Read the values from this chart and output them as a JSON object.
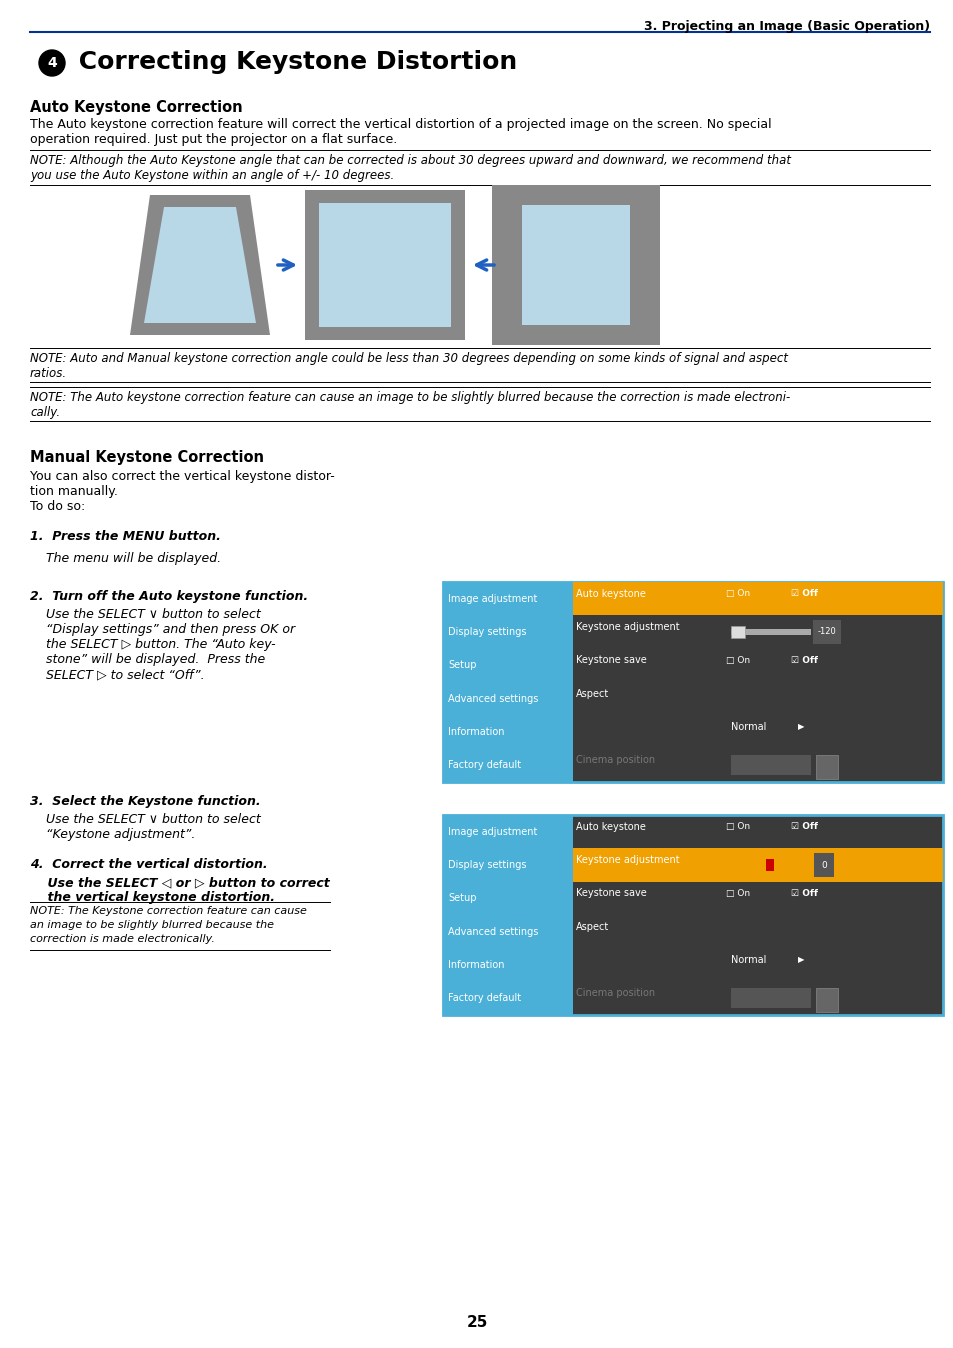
{
  "page_bg": "#ffffff",
  "header_text": "3. Projecting an Image (Basic Operation)",
  "header_line_color": "#003399",
  "title_icon": "4",
  "title_text": " Correcting Keystone Distortion",
  "subtitle1": "Auto Keystone Correction",
  "body1": "The Auto keystone correction feature will correct the vertical distortion of a projected image on the screen. No special\noperation required. Just put the projector on a flat surface.",
  "note1": "NOTE: Although the Auto Keystone angle that can be corrected is about 30 degrees upward and downward, we recommend that\nyou use the Auto Keystone within an angle of +/- 10 degrees.",
  "note2": "NOTE: Auto and Manual keystone correction angle could be less than 30 degrees depending on some kinds of signal and aspect\nratios.",
  "note3": "NOTE: The Auto keystone correction feature can cause an image to be slightly blurred because the correction is made electroni-\ncally.",
  "subtitle2": "Manual Keystone Correction",
  "manual_body1": "You can also correct the vertical keystone distor-",
  "manual_body2": "tion manually.",
  "manual_body3": "To do so:",
  "step1_bold": "1.  Press the MENU button.",
  "step1_italic": "    The menu will be displayed.",
  "step2_bold": "2.  Turn off the Auto keystone function.",
  "step2_line1": "    Use the SELECT ∨ button to select",
  "step2_line2": "    “Display settings” and then press OK or",
  "step2_line3": "    the SELECT ▷ button. The “Auto key-",
  "step2_line4": "    stone” will be displayed.  Press the",
  "step2_line5": "    SELECT ▷ to select “Off”.",
  "step3_bold": "3.  Select the Keystone function.",
  "step3_line1": "    Use the SELECT ∨ button to select",
  "step3_line2": "    “Keystone adjustment”.",
  "step4_bold": "4.  Correct the vertical distortion.",
  "step4_line1": "    Use the SELECT ◁ or ▷ button to correct",
  "step4_line2": "    the vertical keystone distortion.",
  "note4_line1": "NOTE: The Keystone correction feature can cause",
  "note4_line2": "an image to be slightly blurred because the",
  "note4_line3": "correction is made electronically.",
  "page_num": "25",
  "menu_bg": "#3a3a3a",
  "menu_left_bg": "#4ab0d8",
  "menu_highlight_bg": "#f0a000",
  "menu_items": [
    "Image adjustment",
    "Display settings",
    "Setup",
    "Advanced settings",
    "Information",
    "Factory default"
  ],
  "arrow_color": "#2060c0",
  "frame_gray": "#888888",
  "inner_blue": "#b8d8e8"
}
